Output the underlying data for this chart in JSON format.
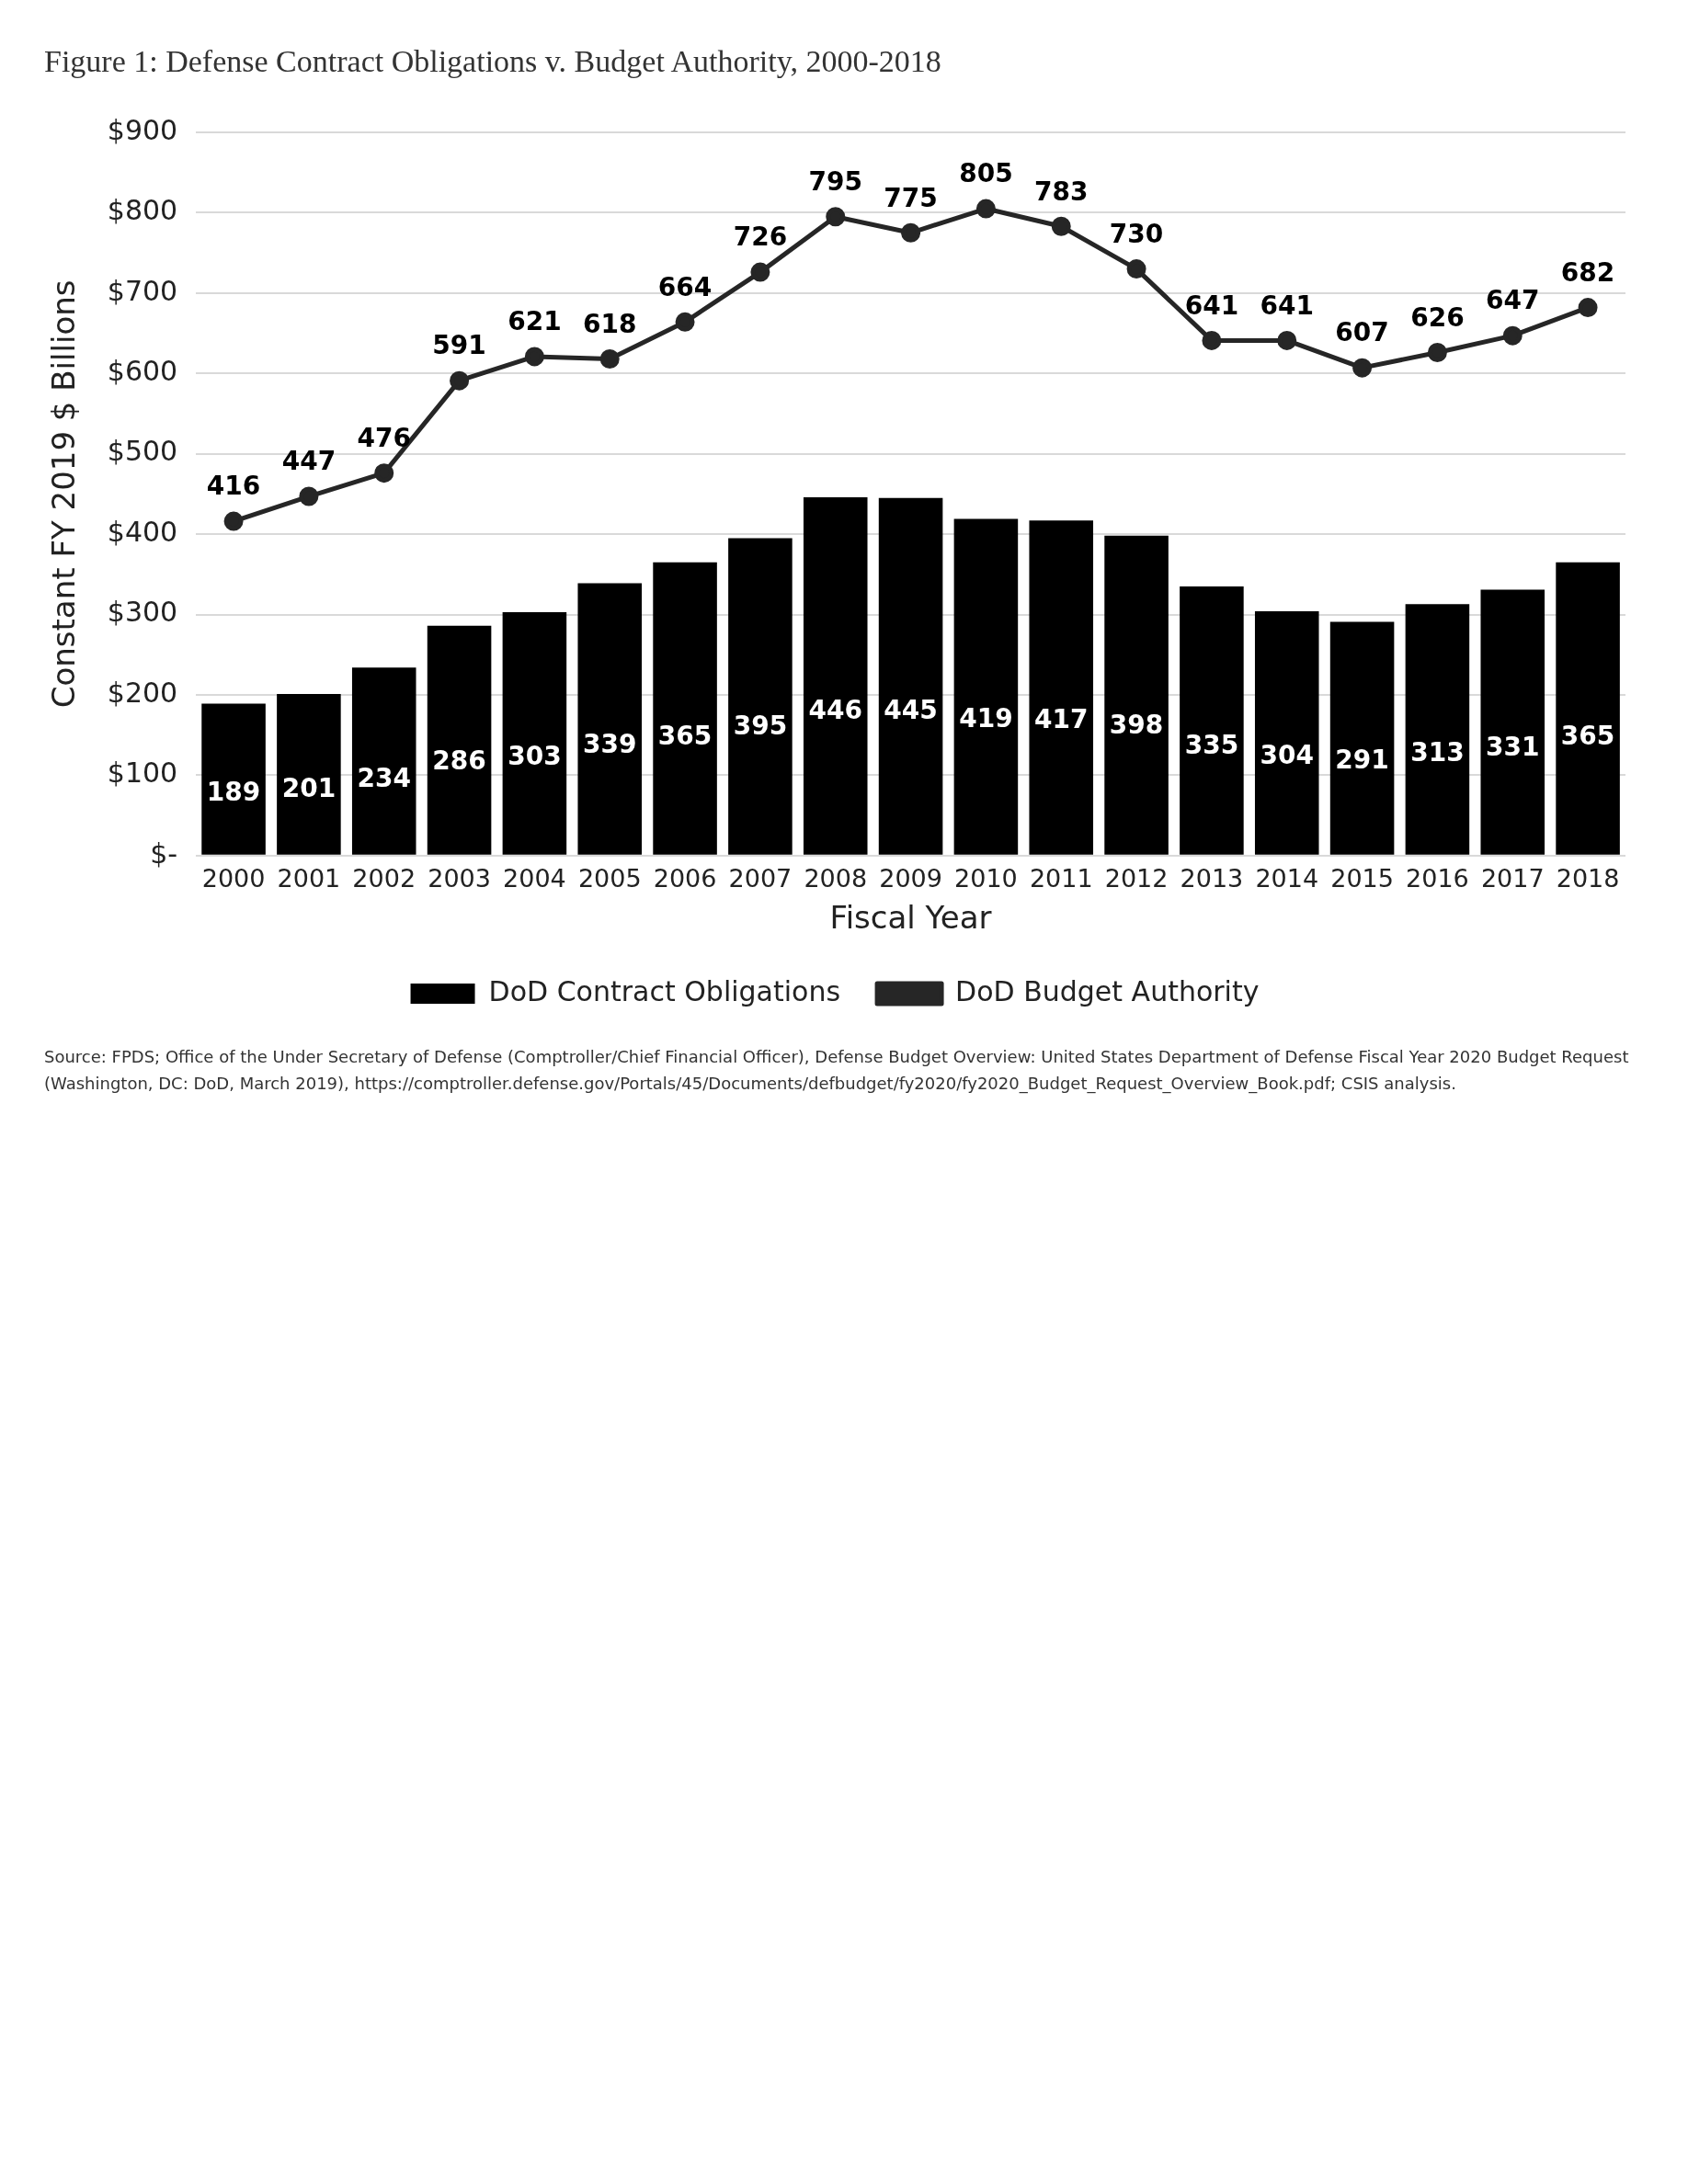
{
  "chart_data": {
    "type": "bar",
    "title": "Figure 1: Defense Contract Obligations v. Budget Authority, 2000-2018",
    "xlabel": "Fiscal Year",
    "ylabel": "Constant FY 2019 $ Billions",
    "categories": [
      "2000",
      "2001",
      "2002",
      "2003",
      "2004",
      "2005",
      "2006",
      "2007",
      "2008",
      "2009",
      "2010",
      "2011",
      "2012",
      "2013",
      "2014",
      "2015",
      "2016",
      "2017",
      "2018"
    ],
    "series": [
      {
        "name": "DoD Contract Obligations",
        "color": "#000000",
        "values": [
          189,
          201,
          234,
          286,
          303,
          339,
          365,
          395,
          446,
          445,
          419,
          417,
          398,
          335,
          304,
          291,
          313,
          331,
          365
        ]
      },
      {
        "name": "DoD Budget Authority",
        "type": "line",
        "color": "#262626",
        "marker": "circle",
        "values": [
          416,
          447,
          476,
          591,
          621,
          618,
          664,
          726,
          795,
          775,
          805,
          783,
          730,
          641,
          641,
          607,
          626,
          647,
          682
        ]
      }
    ],
    "ylim": [
      0,
      900
    ],
    "yticks": [
      {
        "value": 0,
        "label": "$-"
      },
      {
        "value": 100,
        "label": "$100"
      },
      {
        "value": 200,
        "label": "$200"
      },
      {
        "value": 300,
        "label": "$300"
      },
      {
        "value": 400,
        "label": "$400"
      },
      {
        "value": 500,
        "label": "$500"
      },
      {
        "value": 600,
        "label": "$600"
      },
      {
        "value": 700,
        "label": "$700"
      },
      {
        "value": 800,
        "label": "$800"
      },
      {
        "value": 900,
        "label": "$900"
      }
    ],
    "grid": "y",
    "legend": "bottom",
    "data_labels": true,
    "annotations": [
      "Source: FPDS; Office of the Under Secretary of Defense (Comptroller/Chief Financial Officer), Defense Budget Overview: United States Department of Defense Fiscal Year 2020 Budget Request (Washington, DC: DoD, March 2019), https://comptroller.defense.gov/Portals/45/Documents/defbudget/fy2020/fy2020_Budget_Request_Overview_Book.pdf; CSIS analysis."
    ]
  }
}
